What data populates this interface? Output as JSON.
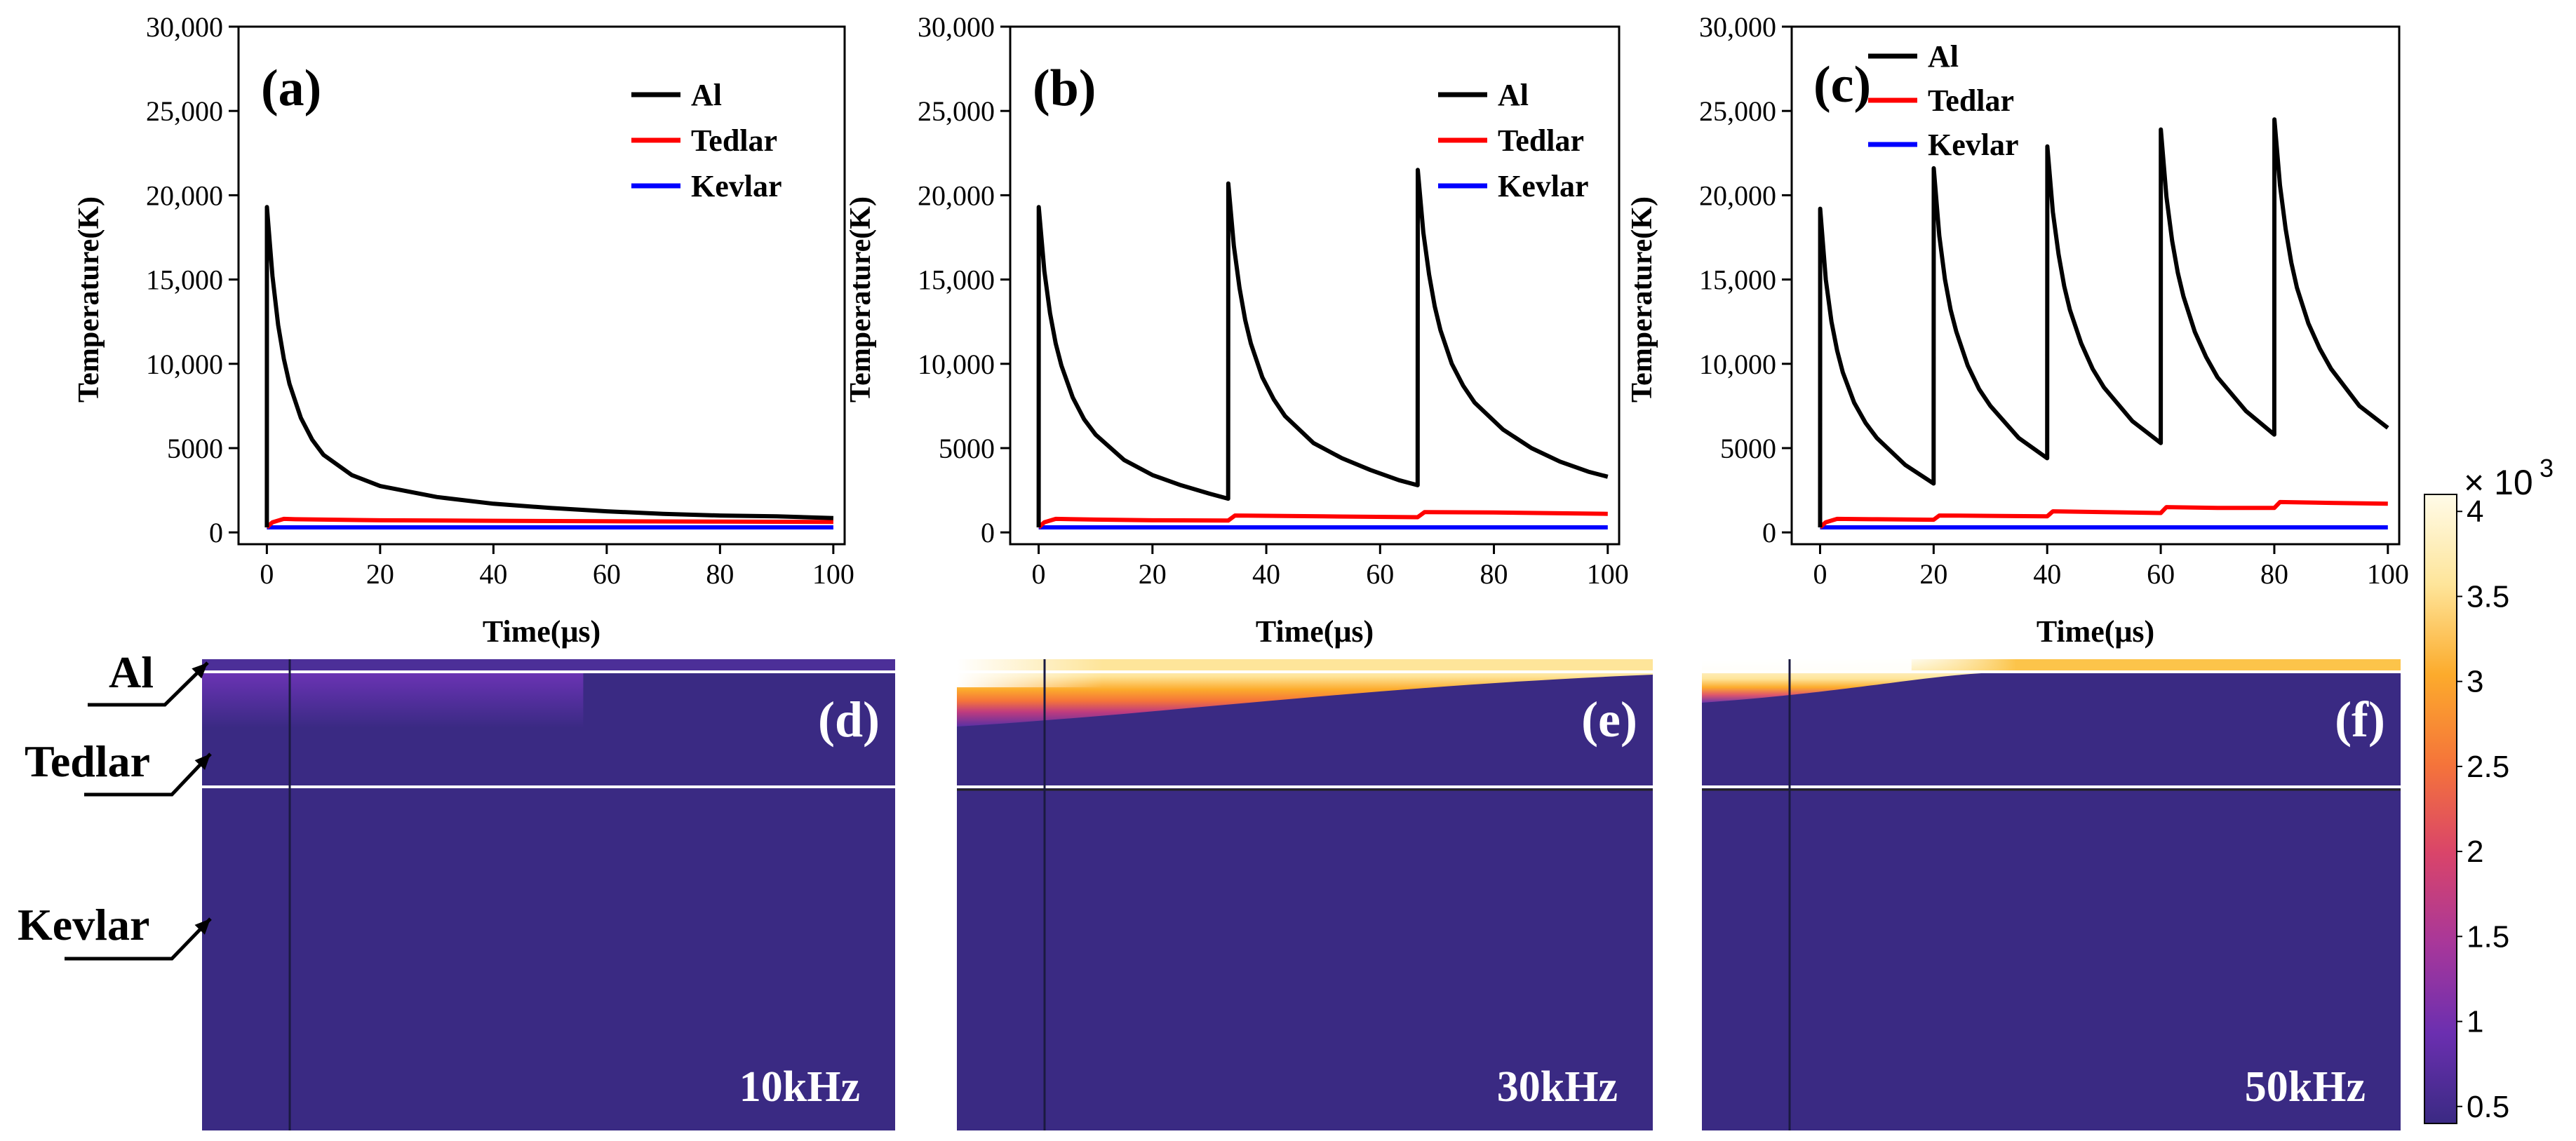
{
  "chart_data": [
    {
      "type": "line",
      "panel": "(a)",
      "frequency": "10kHz",
      "xlabel": "Time(μs)",
      "ylabel": "Temperature(K)",
      "xlim": [
        -5,
        102
      ],
      "ylim": [
        -700,
        30000
      ],
      "xticks": [
        0,
        20,
        40,
        60,
        80,
        100
      ],
      "yticks": [
        0,
        5000,
        10000,
        15000,
        20000,
        25000,
        30000
      ],
      "ytick_labels": [
        "0",
        "5000",
        "10,000",
        "15,000",
        "20,000",
        "25,000",
        "30,000"
      ],
      "legend": [
        "Al",
        "Tedlar",
        "Kevlar"
      ],
      "pulse_times": [
        0
      ],
      "series": [
        {
          "name": "Al",
          "color": "#000000",
          "x": [
            0,
            0.02,
            1,
            2,
            3,
            4,
            6,
            8,
            10,
            15,
            20,
            30,
            40,
            50,
            60,
            70,
            80,
            90,
            100
          ],
          "y": [
            300,
            19300,
            15200,
            12300,
            10300,
            8800,
            6800,
            5500,
            4600,
            3400,
            2750,
            2100,
            1700,
            1450,
            1250,
            1100,
            1000,
            950,
            850
          ]
        },
        {
          "name": "Tedlar",
          "color": "#ff0000",
          "x": [
            0,
            1,
            3,
            5,
            20,
            40,
            60,
            80,
            100
          ],
          "y": [
            300,
            600,
            800,
            780,
            720,
            690,
            660,
            640,
            620
          ]
        },
        {
          "name": "Kevlar",
          "color": "#0000ff",
          "x": [
            0,
            100
          ],
          "y": [
            300,
            300
          ]
        }
      ]
    },
    {
      "type": "line",
      "panel": "(b)",
      "frequency": "30kHz",
      "xlabel": "Time(μs)",
      "ylabel": "Temperature(K)",
      "xlim": [
        -5,
        102
      ],
      "ylim": [
        -700,
        30000
      ],
      "xticks": [
        0,
        20,
        40,
        60,
        80,
        100
      ],
      "yticks": [
        0,
        5000,
        10000,
        15000,
        20000,
        25000,
        30000
      ],
      "ytick_labels": [
        "0",
        "5000",
        "10,000",
        "15,000",
        "20,000",
        "25,000",
        "30,000"
      ],
      "legend": [
        "Al",
        "Tedlar",
        "Kevlar"
      ],
      "pulse_times": [
        0,
        33.3,
        66.6
      ],
      "series": [
        {
          "name": "Al",
          "color": "#000000",
          "x": [
            0,
            0.02,
            1,
            2,
            3,
            4,
            6,
            8,
            10,
            15,
            20,
            25,
            30,
            33.3,
            33.32,
            34.3,
            35.3,
            36.3,
            37.3,
            39.3,
            41.3,
            43.3,
            48.3,
            53.3,
            58.3,
            63.3,
            66.6,
            66.62,
            67.6,
            68.6,
            69.6,
            70.6,
            72.6,
            74.6,
            76.6,
            81.6,
            86.6,
            91.6,
            96.6,
            100
          ],
          "y": [
            300,
            19300,
            15500,
            13000,
            11200,
            9900,
            8000,
            6700,
            5800,
            4300,
            3400,
            2800,
            2300,
            2000,
            20700,
            17000,
            14500,
            12600,
            11200,
            9200,
            7900,
            6900,
            5300,
            4400,
            3700,
            3100,
            2800,
            21500,
            17800,
            15300,
            13400,
            12000,
            10000,
            8700,
            7700,
            6100,
            5000,
            4200,
            3600,
            3300
          ]
        },
        {
          "name": "Tedlar",
          "color": "#ff0000",
          "x": [
            0,
            1,
            3,
            10,
            20,
            33.3,
            34.5,
            50,
            66.6,
            67.8,
            80,
            100
          ],
          "y": [
            300,
            600,
            800,
            760,
            720,
            700,
            1000,
            950,
            900,
            1200,
            1180,
            1100
          ]
        },
        {
          "name": "Kevlar",
          "color": "#0000ff",
          "x": [
            0,
            100
          ],
          "y": [
            300,
            300
          ]
        }
      ]
    },
    {
      "type": "line",
      "panel": "(c)",
      "frequency": "50kHz",
      "xlabel": "Time(μs)",
      "ylabel": "Temperature(K)",
      "xlim": [
        -5,
        102
      ],
      "ylim": [
        -700,
        30000
      ],
      "xticks": [
        0,
        20,
        40,
        60,
        80,
        100
      ],
      "yticks": [
        0,
        5000,
        10000,
        15000,
        20000,
        25000,
        30000
      ],
      "ytick_labels": [
        "0",
        "5000",
        "10,000",
        "15,000",
        "20,000",
        "25,000",
        "30,000"
      ],
      "legend": [
        "Al",
        "Tedlar",
        "Kevlar"
      ],
      "pulse_times": [
        0,
        20,
        40,
        60,
        80
      ],
      "series": [
        {
          "name": "Al",
          "color": "#000000",
          "x": [
            0,
            0.02,
            1,
            2,
            3,
            4,
            6,
            8,
            10,
            15,
            20,
            20.02,
            21,
            22,
            23,
            24,
            26,
            28,
            30,
            35,
            40,
            40.02,
            41,
            42,
            43,
            44,
            46,
            48,
            50,
            55,
            60,
            60.02,
            61,
            62,
            63,
            64,
            66,
            68,
            70,
            75,
            80,
            80.02,
            81,
            82,
            83,
            84,
            86,
            88,
            90,
            95,
            100
          ],
          "y": [
            300,
            19200,
            15000,
            12500,
            10800,
            9500,
            7700,
            6500,
            5600,
            4000,
            2900,
            21600,
            17600,
            15000,
            13200,
            11900,
            9900,
            8500,
            7500,
            5600,
            4400,
            22900,
            19000,
            16500,
            14600,
            13200,
            11200,
            9700,
            8600,
            6600,
            5300,
            23900,
            19900,
            17300,
            15400,
            14000,
            11900,
            10400,
            9200,
            7200,
            5800,
            24500,
            20600,
            18000,
            16000,
            14500,
            12400,
            10900,
            9700,
            7500,
            6200
          ]
        },
        {
          "name": "Tedlar",
          "color": "#ff0000",
          "x": [
            0,
            1,
            3,
            10,
            20,
            21,
            30,
            40,
            41,
            50,
            60,
            61,
            70,
            80,
            81,
            90,
            100
          ],
          "y": [
            300,
            600,
            800,
            780,
            750,
            1000,
            980,
            950,
            1250,
            1200,
            1150,
            1500,
            1450,
            1450,
            1800,
            1750,
            1700
          ]
        },
        {
          "name": "Kevlar",
          "color": "#0000ff",
          "x": [
            0,
            100
          ],
          "y": [
            300,
            300
          ]
        }
      ]
    },
    {
      "type": "heatmap",
      "panels": [
        "(d)",
        "(e)",
        "(f)"
      ],
      "frequencies": [
        "10kHz",
        "30kHz",
        "50kHz"
      ],
      "layers": [
        "Al",
        "Tedlar",
        "Kevlar"
      ],
      "colorbar": {
        "exponent_label": "× 10",
        "exponent_power": "3",
        "ticks": [
          0.5,
          1,
          1.5,
          2,
          2.5,
          3,
          3.5,
          4
        ],
        "tick_labels": [
          "0.5",
          "1",
          "1.5",
          "2",
          "2.5",
          "3",
          "3.5",
          "4"
        ],
        "range": [
          0.4,
          4.1
        ],
        "colors": [
          "#3a2a83",
          "#6b2fb0",
          "#a8379a",
          "#d9446a",
          "#f5743a",
          "#fcab2c",
          "#fee59a",
          "#fffbe8"
        ]
      },
      "hot_zone_max_temperature_e3": [
        1.0,
        4.0,
        4.0
      ]
    }
  ]
}
